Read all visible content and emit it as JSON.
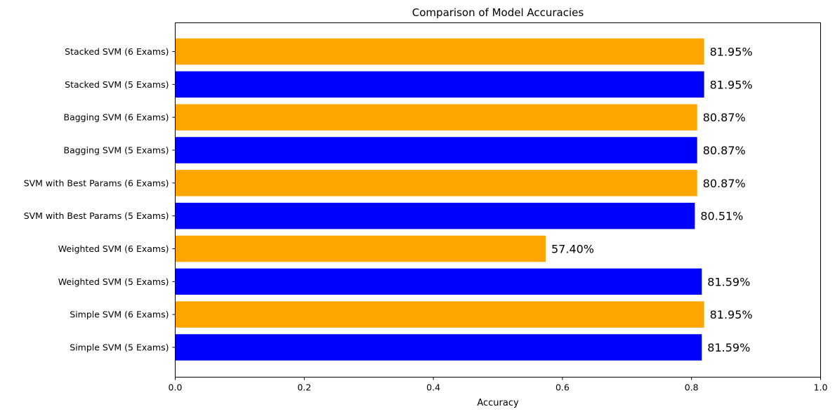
{
  "chart_data": {
    "type": "bar",
    "orientation": "horizontal",
    "title": "Comparison of Model Accuracies",
    "xlabel": "Accuracy",
    "ylabel": "",
    "xlim": [
      0,
      1
    ],
    "xticks": [
      0.0,
      0.2,
      0.4,
      0.6,
      0.8,
      1.0
    ],
    "xtick_labels": [
      "0.0",
      "0.2",
      "0.4",
      "0.6",
      "0.8",
      "1.0"
    ],
    "grid": false,
    "categories": [
      "Simple SVM (5 Exams)",
      "Simple SVM (6 Exams)",
      "Weighted SVM (5 Exams)",
      "Weighted SVM (6 Exams)",
      "SVM with Best Params (5 Exams)",
      "SVM with Best Params (6 Exams)",
      "Bagging SVM (5 Exams)",
      "Bagging SVM (6 Exams)",
      "Stacked SVM (5 Exams)",
      "Stacked SVM (6 Exams)"
    ],
    "values": [
      0.8159,
      0.8195,
      0.8159,
      0.574,
      0.8051,
      0.8087,
      0.8087,
      0.8087,
      0.8195,
      0.8195
    ],
    "value_labels": [
      "81.59%",
      "81.95%",
      "81.59%",
      "57.40%",
      "80.51%",
      "80.87%",
      "80.87%",
      "80.87%",
      "81.95%",
      "81.95%"
    ],
    "colors": [
      "#0000ff",
      "#ffa500",
      "#0000ff",
      "#ffa500",
      "#0000ff",
      "#ffa500",
      "#0000ff",
      "#ffa500",
      "#0000ff",
      "#ffa500"
    ]
  }
}
